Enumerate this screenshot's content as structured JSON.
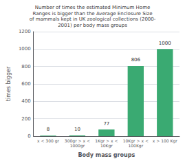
{
  "chart_data": {
    "type": "bar",
    "title": "Number of times the estimated Minimum Home\nRanges is bigger than the Average Enclosure Size\nof mammals kept in UK zoological collections (2000-\n2001) per body mass groups",
    "categories": [
      "x < 300 gr",
      "300gr > x <\n1000gr",
      "1Kgr > x <\n10Kgr",
      "10Kgr > x <\n100Kgr",
      "x > 100 Kgr"
    ],
    "values": [
      8,
      10,
      77,
      806,
      1000
    ],
    "color": "#3aaa72",
    "xlabel": "Body mass groups",
    "ylabel": "times bigger",
    "ylim": [
      0,
      1200
    ],
    "yticks": [
      0,
      200,
      400,
      600,
      800,
      1000,
      1200
    ],
    "grid": true,
    "data_labels": true
  }
}
